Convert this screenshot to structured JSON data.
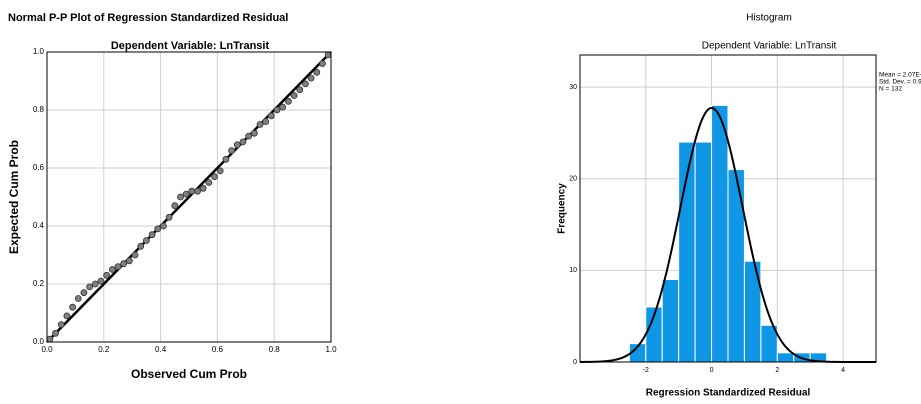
{
  "chart_data": [
    {
      "type": "scatter",
      "title": "Normal P-P Plot of Regression Standardized Residual",
      "subtitle": "Dependent Variable: LnTransit",
      "x_label": "Observed Cum Prob",
      "y_label": "Expected Cum Prob",
      "xlim": [
        0,
        1
      ],
      "ylim": [
        0,
        1
      ],
      "xticks": [
        {
          "value": 0,
          "label": "0.0"
        },
        0.2,
        0.4,
        0.6,
        0.8,
        {
          "value": 1,
          "label": "1.0"
        }
      ],
      "yticks": [
        {
          "value": 0,
          "label": "0.0"
        },
        0.2,
        0.4,
        0.6,
        0.8,
        {
          "value": 1,
          "label": "1.0"
        }
      ],
      "grid": true,
      "reference_line": true,
      "color": "#7f7f7f",
      "x": [
        0.01,
        0.03,
        0.05,
        0.07,
        0.09,
        0.11,
        0.13,
        0.15,
        0.17,
        0.19,
        0.21,
        0.23,
        0.25,
        0.27,
        0.29,
        0.31,
        0.33,
        0.35,
        0.37,
        0.39,
        0.41,
        0.43,
        0.45,
        0.47,
        0.49,
        0.51,
        0.53,
        0.55,
        0.57,
        0.59,
        0.61,
        0.63,
        0.65,
        0.67,
        0.69,
        0.71,
        0.73,
        0.75,
        0.77,
        0.79,
        0.81,
        0.83,
        0.85,
        0.87,
        0.89,
        0.91,
        0.93,
        0.95,
        0.97,
        0.99
      ],
      "values": [
        0.01,
        0.03,
        0.06,
        0.09,
        0.12,
        0.15,
        0.17,
        0.19,
        0.2,
        0.21,
        0.23,
        0.25,
        0.26,
        0.27,
        0.28,
        0.3,
        0.33,
        0.35,
        0.37,
        0.39,
        0.4,
        0.43,
        0.47,
        0.5,
        0.51,
        0.52,
        0.52,
        0.53,
        0.55,
        0.57,
        0.59,
        0.63,
        0.66,
        0.68,
        0.69,
        0.71,
        0.72,
        0.75,
        0.76,
        0.78,
        0.8,
        0.81,
        0.83,
        0.85,
        0.87,
        0.89,
        0.91,
        0.93,
        0.96,
        0.99
      ]
    },
    {
      "type": "histogram",
      "title": "Histogram",
      "subtitle": "Dependent Variable: LnTransit",
      "x_label": "Regression Standardized Residual",
      "y_label": "Frequency",
      "xlim": [
        -4,
        5
      ],
      "ylim": [
        0,
        33.5
      ],
      "xticks": [
        -2,
        0,
        2,
        4
      ],
      "yticks": [
        0,
        10,
        20,
        30
      ],
      "grid": true,
      "color": "#0f97e6",
      "bins": [
        -2.5,
        -2,
        -1.5,
        -1,
        -0.5,
        0,
        0.5,
        1,
        1.5,
        2,
        2.5,
        3,
        3.5
      ],
      "values": [
        2,
        6,
        9,
        24,
        24,
        28,
        21,
        11,
        4,
        1,
        1,
        1
      ],
      "normal_curve": true,
      "stats": [
        {
          "value": 2.07e-13,
          "label": "Mean = 2.07E-13"
        },
        {
          "value": 0.95,
          "label": "Std. Dev. = 0.95"
        },
        {
          "value": 132,
          "label": "N = 132"
        }
      ]
    }
  ]
}
